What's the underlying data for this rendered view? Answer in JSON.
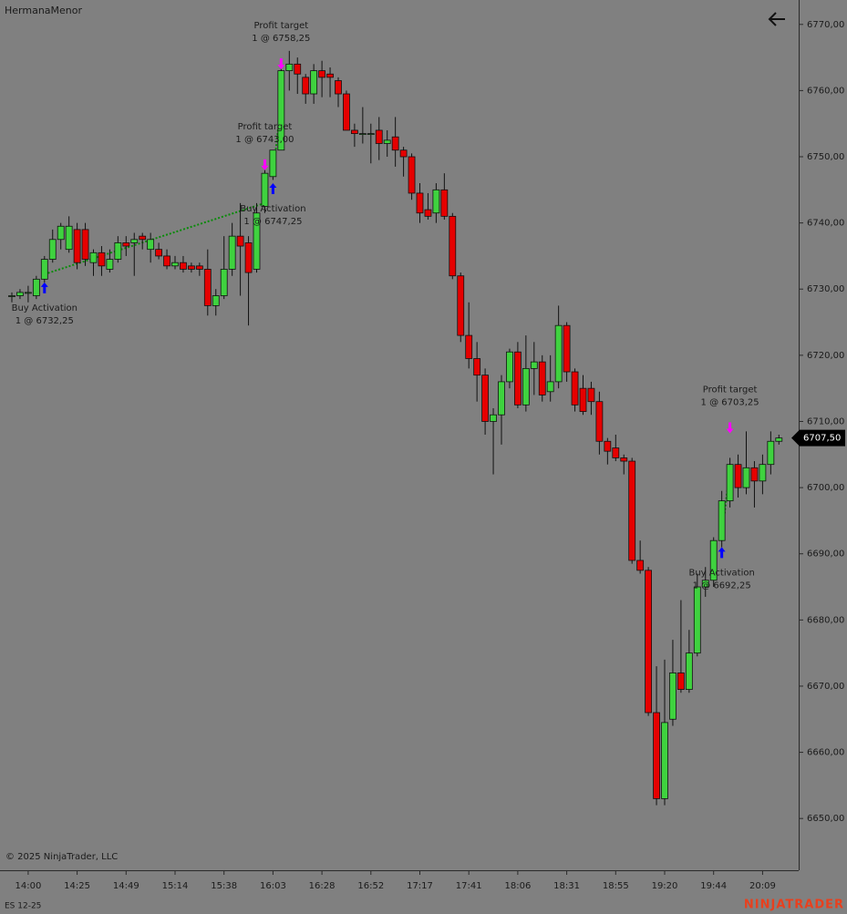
{
  "chart_data": {
    "type": "candlestick",
    "title": "HermanaMenor",
    "copyright": "© 2025 NinjaTrader, LLC",
    "instrument": "ES 12-25",
    "brand": "NINJATRADER",
    "up_color": "#3fd23f",
    "down_color": "#e60000",
    "categories": [
      null,
      null,
      "14:00",
      null,
      null,
      null,
      null,
      null,
      "14:25",
      null,
      null,
      null,
      null,
      null,
      "14:49",
      null,
      null,
      null,
      null,
      null,
      "15:14",
      null,
      null,
      null,
      null,
      null,
      "15:38",
      null,
      null,
      null,
      null,
      null,
      "16:03",
      null,
      null,
      null,
      null,
      null,
      "16:28",
      null,
      null,
      null,
      null,
      null,
      "16:52",
      null,
      null,
      null,
      null,
      null,
      "17:17",
      null,
      null,
      null,
      null,
      null,
      "17:41",
      null,
      null,
      null,
      null,
      null,
      "18:06",
      null,
      null,
      null,
      null,
      null,
      "18:31",
      null,
      null,
      null,
      null,
      null,
      "18:55",
      null,
      null,
      null,
      null,
      null,
      "19:20",
      null,
      null,
      null,
      null,
      null,
      "19:44",
      null,
      null,
      null,
      null,
      null,
      "20:09",
      null,
      null
    ],
    "open": [
      6729,
      6729,
      6729.5,
      6729,
      6731.5,
      6734.5,
      6737.5,
      6736,
      6739,
      6739,
      6734,
      6735.5,
      6733,
      6734.5,
      6737,
      6737,
      6738,
      6736,
      6736,
      6735,
      6733.5,
      6734,
      6733.5,
      6733.5,
      6733,
      6727.5,
      6729,
      6733,
      6738,
      6737,
      6733,
      6742.5,
      6747,
      6751,
      6763,
      6764,
      6762,
      6759.5,
      6763,
      6762.5,
      6761.5,
      6759.5,
      6754,
      6753.5,
      6753.5,
      6754,
      6752,
      6753,
      6751,
      6750,
      6744.5,
      6742,
      6741.5,
      6745,
      6741,
      6732,
      6723,
      6719.5,
      6717,
      6710,
      6711,
      6716,
      6720.5,
      6712.5,
      6718,
      6719,
      6714.5,
      6716,
      6724.5,
      6717.5,
      6715,
      6715,
      6713,
      6707,
      6706,
      6704.5,
      6704,
      6689,
      6687.5,
      6666,
      6653,
      6665,
      6672,
      6669.5,
      6675,
      6685,
      6686,
      6692,
      6698,
      6703.5,
      6700,
      6703,
      6701,
      6703.5,
      6707
    ],
    "high": [
      6729.5,
      6730,
      6730.5,
      6732,
      6735,
      6739,
      6740,
      6741,
      6740,
      6740,
      6736,
      6736.5,
      6736,
      6738,
      6738,
      6738.5,
      6738.5,
      6738.5,
      6737,
      6736,
      6735,
      6735,
      6734,
      6734,
      6736,
      6730,
      6738,
      6740,
      6743,
      6738,
      6743,
      6748,
      6751,
      6764,
      6766,
      6765,
      6762.5,
      6764,
      6764.5,
      6763.5,
      6762,
      6760,
      6755,
      6757.5,
      6755,
      6756,
      6754,
      6756,
      6751.5,
      6750.5,
      6746,
      6744.5,
      6746,
      6747.5,
      6741.5,
      6732.5,
      6728,
      6722,
      6718,
      6712,
      6717,
      6721,
      6722,
      6723,
      6722,
      6720,
      6720,
      6727.5,
      6725,
      6718,
      6717,
      6716,
      6714.5,
      6707.5,
      6708,
      6705,
      6704.5,
      6692,
      6688,
      6673,
      6674,
      6677,
      6683,
      6678.5,
      6687,
      6688,
      6692.5,
      6699.5,
      6704.5,
      6705,
      6708.5,
      6704,
      6705,
      6708.5,
      6708
    ],
    "low": [
      6728,
      6728.5,
      6728,
      6728.5,
      6731,
      6734,
      6736,
      6735.5,
      6733,
      6733.5,
      6732,
      6732,
      6732.5,
      6734,
      6735,
      6732,
      6736,
      6734,
      6734.5,
      6733,
      6733,
      6732.5,
      6732.5,
      6732,
      6726,
      6726,
      6728.5,
      6732,
      6729,
      6724.5,
      6732.5,
      6741.5,
      6746.5,
      6751,
      6760,
      6759.5,
      6758,
      6758,
      6759,
      6759,
      6757.5,
      6754,
      6751.5,
      6752,
      6749,
      6749.5,
      6750,
      6748.5,
      6747,
      6743.5,
      6740,
      6740.5,
      6740,
      6740.5,
      6731.5,
      6722,
      6718,
      6713,
      6708,
      6702,
      6706.5,
      6715,
      6712,
      6711.5,
      6714,
      6713,
      6713,
      6715,
      6716,
      6711.5,
      6711,
      6711,
      6705,
      6703.5,
      6704,
      6702,
      6688.5,
      6687,
      6665.5,
      6652,
      6652,
      6664,
      6669,
      6669,
      6674.5,
      6683.5,
      6685,
      6691,
      6697,
      6698.5,
      6699,
      6697,
      6699,
      6702,
      6706.5
    ],
    "close": [
      6729,
      6729.5,
      6729.5,
      6731.5,
      6734.5,
      6737.5,
      6739.5,
      6739.5,
      6734,
      6734.5,
      6735.5,
      6733.5,
      6734.5,
      6737,
      6736.5,
      6737.5,
      6737.5,
      6737.5,
      6735,
      6733.5,
      6734,
      6733,
      6733,
      6733,
      6727.5,
      6729,
      6733,
      6738,
      6736.5,
      6732.5,
      6741.5,
      6747.5,
      6751,
      6763,
      6764,
      6762.5,
      6759.5,
      6763,
      6762,
      6762,
      6759.5,
      6754,
      6753.5,
      6753.5,
      6753.5,
      6752,
      6752.5,
      6751,
      6750,
      6744.5,
      6741.5,
      6741,
      6745,
      6741,
      6732,
      6723,
      6719.5,
      6717,
      6710,
      6711,
      6716,
      6720.5,
      6712.5,
      6718,
      6719,
      6714,
      6716,
      6724.5,
      6717.5,
      6712.5,
      6711.5,
      6713,
      6707,
      6705.5,
      6704.5,
      6704,
      6689,
      6687.5,
      6666,
      6653,
      6664.5,
      6672,
      6669.5,
      6675,
      6685,
      6686,
      6692,
      6698,
      6703.5,
      6700,
      6703,
      6701,
      6703.5,
      6707,
      6707.5
    ],
    "ylim": [
      6645,
      6772
    ],
    "yticks": [
      {
        "value": 6650,
        "label": "6650,00"
      },
      {
        "value": 6660,
        "label": "6660,00"
      },
      {
        "value": 6670,
        "label": "6670,00"
      },
      {
        "value": 6680,
        "label": "6680,00"
      },
      {
        "value": 6690,
        "label": "6690,00"
      },
      {
        "value": 6700,
        "label": "6700,00"
      },
      {
        "value": 6710,
        "label": "6710,00"
      },
      {
        "value": 6720,
        "label": "6720,00"
      },
      {
        "value": 6730,
        "label": "6730,00"
      },
      {
        "value": 6740,
        "label": "6740,00"
      },
      {
        "value": 6750,
        "label": "6750,00"
      },
      {
        "value": 6760,
        "label": "6760,00"
      },
      {
        "value": 6770,
        "label": "6770,00"
      }
    ],
    "last_price": {
      "value": 6707.5,
      "label": "6707,50"
    },
    "markers": [
      {
        "kind": "buy",
        "label": "Buy Activation",
        "detail": "1 @ 6732,25",
        "price": 6732.25,
        "bar": 4,
        "color": "#0000ff"
      },
      {
        "kind": "sell",
        "label": "Profit target",
        "detail": "1 @ 6743,00",
        "price": 6743,
        "bar": 31,
        "color": "#ff00ff"
      },
      {
        "kind": "buy",
        "label": "Buy Activation",
        "detail": "1 @ 6747,25",
        "price": 6747.25,
        "bar": 32,
        "color": "#0000ff"
      },
      {
        "kind": "sell",
        "label": "Profit target",
        "detail": "1 @ 6758,25",
        "price": 6758.25,
        "bar": 33,
        "color": "#ff00ff"
      },
      {
        "kind": "buy",
        "label": "Buy Activation",
        "detail": "1 @ 6692,25",
        "price": 6692.25,
        "bar": 87,
        "color": "#0000ff"
      },
      {
        "kind": "sell",
        "label": "Profit target",
        "detail": "1 @ 6703,25",
        "price": 6703.25,
        "bar": 88,
        "color": "#ff00ff"
      }
    ]
  }
}
